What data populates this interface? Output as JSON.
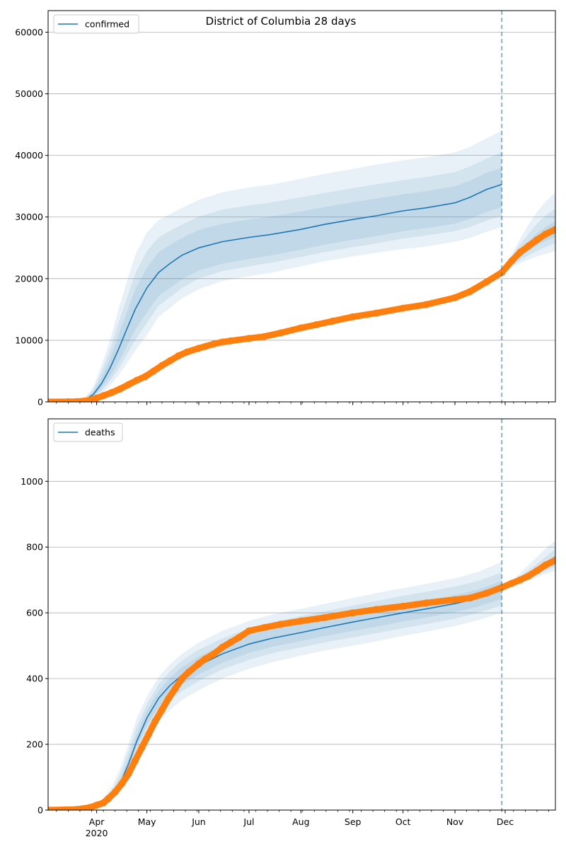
{
  "chart_data": [
    {
      "type": "line",
      "title": "District of Columbia 28 days",
      "legend": {
        "label": "confirmed",
        "placement": "top-left"
      },
      "ylim": [
        0,
        63500
      ],
      "yticks": [
        0,
        10000,
        20000,
        30000,
        40000,
        50000,
        60000
      ],
      "grid": "y",
      "xrange": [
        "2020-03-03",
        "2020-12-31"
      ],
      "month_ticks": [
        {
          "date": "2020-04-01",
          "label": "Apr",
          "sub": "2020"
        },
        {
          "date": "2020-05-01",
          "label": "May"
        },
        {
          "date": "2020-06-01",
          "label": "Jun"
        },
        {
          "date": "2020-07-01",
          "label": "Jul"
        },
        {
          "date": "2020-08-01",
          "label": "Aug"
        },
        {
          "date": "2020-09-01",
          "label": "Sep"
        },
        {
          "date": "2020-10-01",
          "label": "Oct"
        },
        {
          "date": "2020-11-01",
          "label": "Nov"
        },
        {
          "date": "2020-12-01",
          "label": "Dec"
        }
      ],
      "vline_date": "2020-11-29",
      "model": {
        "dates": [
          "2020-03-03",
          "2020-03-20",
          "2020-03-25",
          "2020-03-30",
          "2020-04-04",
          "2020-04-09",
          "2020-04-14",
          "2020-04-19",
          "2020-04-24",
          "2020-05-01",
          "2020-05-08",
          "2020-05-15",
          "2020-05-22",
          "2020-06-01",
          "2020-06-15",
          "2020-07-01",
          "2020-07-15",
          "2020-08-01",
          "2020-08-15",
          "2020-09-01",
          "2020-09-15",
          "2020-10-01",
          "2020-10-15",
          "2020-11-01",
          "2020-11-10",
          "2020-11-20",
          "2020-11-29"
        ],
        "values": [
          0,
          100,
          300,
          1200,
          3000,
          5500,
          8500,
          11800,
          15000,
          18500,
          21000,
          22500,
          23800,
          25000,
          26000,
          26700,
          27200,
          28000,
          28800,
          29600,
          30200,
          31000,
          31500,
          32300,
          33200,
          34500,
          35300
        ]
      },
      "bands": [
        {
          "lower": [
            0,
            50,
            150,
            500,
            1300,
            2600,
            4300,
            6200,
            8300,
            10800,
            13800,
            15300,
            16800,
            18300,
            19600,
            20400,
            21000,
            22000,
            22800,
            23600,
            24200,
            24800,
            25200,
            26000,
            26600,
            27600,
            28400
          ],
          "upper": [
            0,
            200,
            600,
            2500,
            6000,
            10000,
            15000,
            19500,
            23800,
            27500,
            29500,
            30500,
            31500,
            32800,
            34000,
            34800,
            35300,
            36200,
            37000,
            37800,
            38500,
            39200,
            39700,
            40500,
            41400,
            42800,
            44000
          ]
        },
        {
          "lower": [
            0,
            60,
            200,
            700,
            1800,
            3400,
            5300,
            7600,
            10000,
            12800,
            15600,
            17000,
            18500,
            20000,
            21200,
            22000,
            22600,
            23500,
            24300,
            25100,
            25700,
            26500,
            27000,
            27700,
            28400,
            29400,
            30200
          ],
          "upper": [
            0,
            170,
            500,
            2000,
            5000,
            8500,
            12800,
            16800,
            20800,
            24500,
            26700,
            27800,
            28800,
            30100,
            31200,
            31900,
            32400,
            33200,
            33900,
            34700,
            35300,
            36000,
            36500,
            37300,
            38200,
            39500,
            40500
          ]
        },
        {
          "lower": [
            0,
            70,
            230,
            850,
            2200,
            4100,
            6400,
            9000,
            11700,
            14500,
            17200,
            18500,
            19900,
            21300,
            22400,
            23200,
            23800,
            24700,
            25500,
            26300,
            26900,
            27700,
            28200,
            28900,
            29700,
            30800,
            31600
          ],
          "upper": [
            0,
            140,
            430,
            1650,
            4000,
            7000,
            10800,
            14500,
            18200,
            21800,
            24300,
            25500,
            26600,
            27900,
            28900,
            29600,
            30100,
            30900,
            31600,
            32400,
            33000,
            33700,
            34200,
            35000,
            35900,
            37200,
            38000
          ]
        }
      ],
      "future": {
        "dates": [
          "2020-11-29",
          "2020-12-05",
          "2020-12-10",
          "2020-12-15",
          "2020-12-20",
          "2020-12-25",
          "2020-12-31"
        ],
        "median": [
          21500,
          22800,
          24000,
          25200,
          26300,
          27100,
          27800
        ],
        "bands": [
          {
            "lower": [
              21200,
              21900,
              22500,
              23100,
              23600,
              24000,
              24500
            ],
            "upper": [
              21800,
              24000,
              26500,
              28800,
              30800,
              32500,
              34000
            ]
          },
          {
            "lower": [
              21300,
              22200,
              23000,
              23800,
              24500,
              25100,
              25800
            ],
            "upper": [
              21700,
              23600,
              25600,
              27300,
              28900,
              30200,
              31400
            ]
          },
          {
            "lower": [
              21400,
              22500,
              23500,
              24500,
              25400,
              26100,
              26800
            ],
            "upper": [
              21600,
              23200,
              24700,
              26100,
              27400,
              28400,
              29300
            ]
          }
        ]
      },
      "observed": {
        "dates": [
          "2020-03-03",
          "2020-03-15",
          "2020-03-20",
          "2020-03-25",
          "2020-03-28",
          "2020-04-01",
          "2020-04-05",
          "2020-04-10",
          "2020-04-15",
          "2020-04-20",
          "2020-04-25",
          "2020-04-30",
          "2020-05-05",
          "2020-05-10",
          "2020-05-15",
          "2020-05-20",
          "2020-05-25",
          "2020-06-01",
          "2020-06-05",
          "2020-06-10",
          "2020-06-15",
          "2020-06-20",
          "2020-07-01",
          "2020-07-10",
          "2020-07-20",
          "2020-08-01",
          "2020-08-10",
          "2020-08-20",
          "2020-09-01",
          "2020-09-15",
          "2020-10-01",
          "2020-10-15",
          "2020-11-01",
          "2020-11-10",
          "2020-11-20",
          "2020-11-29",
          "2020-12-05",
          "2020-12-10",
          "2020-12-15",
          "2020-12-20",
          "2020-12-25",
          "2020-12-31"
        ],
        "values": [
          0,
          10,
          50,
          150,
          300,
          600,
          1000,
          1500,
          2100,
          2800,
          3500,
          4100,
          5000,
          5900,
          6700,
          7500,
          8100,
          8700,
          9000,
          9400,
          9700,
          9900,
          10300,
          10600,
          11200,
          12000,
          12500,
          13100,
          13800,
          14400,
          15200,
          15800,
          16900,
          17900,
          19500,
          21000,
          22900,
          24300,
          25300,
          26300,
          27200,
          28000
        ]
      }
    },
    {
      "type": "line",
      "legend": {
        "label": "deaths",
        "placement": "top-left"
      },
      "ylim": [
        0,
        1190
      ],
      "yticks": [
        0,
        200,
        400,
        600,
        800,
        1000
      ],
      "grid": "y",
      "xrange": [
        "2020-03-03",
        "2020-12-31"
      ],
      "vline_date": "2020-11-29",
      "model": {
        "dates": [
          "2020-03-03",
          "2020-03-20",
          "2020-03-28",
          "2020-04-04",
          "2020-04-10",
          "2020-04-15",
          "2020-04-20",
          "2020-04-25",
          "2020-05-01",
          "2020-05-08",
          "2020-05-15",
          "2020-05-22",
          "2020-06-01",
          "2020-06-15",
          "2020-07-01",
          "2020-07-15",
          "2020-08-01",
          "2020-08-15",
          "2020-09-01",
          "2020-09-15",
          "2020-10-01",
          "2020-10-15",
          "2020-11-01",
          "2020-11-15",
          "2020-11-29"
        ],
        "values": [
          0,
          1,
          5,
          15,
          40,
          80,
          140,
          210,
          280,
          340,
          380,
          410,
          440,
          475,
          505,
          523,
          540,
          555,
          572,
          585,
          600,
          612,
          628,
          645,
          670
        ]
      },
      "bands": [
        {
          "lower": [
            0,
            0,
            2,
            8,
            25,
            55,
            100,
            160,
            220,
            270,
            305,
            335,
            365,
            400,
            430,
            450,
            470,
            485,
            500,
            513,
            530,
            543,
            560,
            578,
            600
          ],
          "upper": [
            0,
            3,
            10,
            30,
            70,
            125,
            200,
            280,
            345,
            405,
            445,
            475,
            510,
            545,
            575,
            595,
            612,
            627,
            645,
            660,
            675,
            688,
            705,
            725,
            755
          ]
        },
        {
          "lower": [
            0,
            1,
            3,
            10,
            30,
            63,
            115,
            180,
            245,
            295,
            335,
            362,
            393,
            428,
            457,
            477,
            495,
            510,
            525,
            538,
            553,
            566,
            582,
            600,
            623
          ],
          "upper": [
            0,
            2,
            8,
            24,
            57,
            108,
            178,
            255,
            322,
            383,
            423,
            455,
            488,
            522,
            553,
            572,
            590,
            604,
            622,
            636,
            652,
            664,
            680,
            697,
            723
          ]
        },
        {
          "lower": [
            0,
            1,
            4,
            12,
            34,
            70,
            125,
            193,
            258,
            313,
            353,
            381,
            413,
            448,
            478,
            497,
            514,
            529,
            545,
            558,
            574,
            586,
            602,
            619,
            643
          ],
          "upper": [
            0,
            2,
            6,
            19,
            47,
            92,
            158,
            230,
            303,
            362,
            404,
            435,
            467,
            502,
            532,
            549,
            566,
            581,
            599,
            612,
            627,
            638,
            654,
            671,
            697
          ]
        }
      ],
      "future": {
        "dates": [
          "2020-11-29",
          "2020-12-05",
          "2020-12-10",
          "2020-12-15",
          "2020-12-20",
          "2020-12-25",
          "2020-12-31"
        ],
        "median": [
          680,
          692,
          703,
          715,
          728,
          742,
          757
        ],
        "bands": [
          {
            "lower": [
              677,
              685,
              690,
              698,
              708,
              718,
              728
            ],
            "upper": [
              683,
              700,
              720,
              745,
              770,
              795,
              820
            ]
          },
          {
            "lower": [
              678,
              688,
              695,
              705,
              716,
              727,
              740
            ],
            "upper": [
              682,
              697,
              712,
              730,
              750,
              770,
              795
            ]
          },
          {
            "lower": [
              679,
              690,
              699,
              710,
              722,
              735,
              748
            ],
            "upper": [
              681,
              694,
              707,
              722,
              738,
              755,
              775
            ]
          }
        ]
      },
      "observed": {
        "dates": [
          "2020-03-03",
          "2020-03-20",
          "2020-03-28",
          "2020-04-01",
          "2020-04-05",
          "2020-04-08",
          "2020-04-12",
          "2020-04-16",
          "2020-04-20",
          "2020-04-24",
          "2020-04-28",
          "2020-05-02",
          "2020-05-06",
          "2020-05-10",
          "2020-05-14",
          "2020-05-18",
          "2020-05-22",
          "2020-05-26",
          "2020-06-01",
          "2020-06-05",
          "2020-06-10",
          "2020-06-15",
          "2020-06-20",
          "2020-06-25",
          "2020-07-01",
          "2020-07-10",
          "2020-07-20",
          "2020-08-01",
          "2020-08-15",
          "2020-09-01",
          "2020-09-15",
          "2020-10-01",
          "2020-10-15",
          "2020-11-01",
          "2020-11-10",
          "2020-11-20",
          "2020-11-29",
          "2020-12-05",
          "2020-12-10",
          "2020-12-15",
          "2020-12-20",
          "2020-12-25",
          "2020-12-31"
        ],
        "values": [
          0,
          2,
          8,
          15,
          22,
          35,
          55,
          80,
          110,
          150,
          190,
          230,
          270,
          305,
          340,
          370,
          400,
          420,
          445,
          460,
          475,
          495,
          510,
          525,
          545,
          555,
          565,
          575,
          585,
          600,
          610,
          620,
          630,
          640,
          645,
          660,
          677,
          690,
          700,
          712,
          728,
          745,
          760
        ]
      }
    }
  ]
}
